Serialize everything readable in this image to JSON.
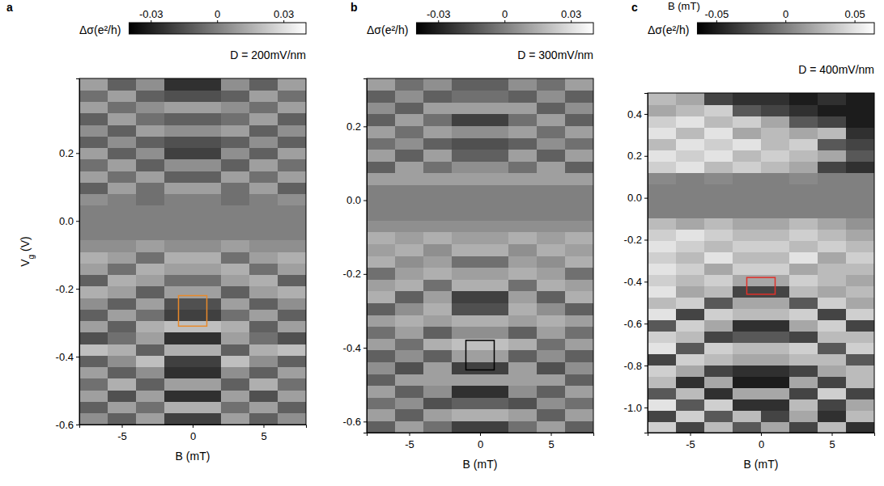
{
  "chart_data": [
    {
      "type": "heatmap",
      "panel": "a",
      "title": "D = 200mV/nm",
      "xlabel": "B (mT)",
      "ylabel": "Vg (V)",
      "xlim": [
        -8,
        8
      ],
      "ylim": [
        -0.6,
        0.42
      ],
      "xticks": [
        -5,
        0,
        5
      ],
      "yticks": [
        0.2,
        {
          "value": 0,
          "label": "0.0"
        },
        -0.2,
        -0.4,
        -0.6
      ],
      "x_edges": [
        -8,
        -6,
        -4,
        -2,
        0,
        2,
        4,
        6,
        8
      ],
      "y_edges": [
        -0.6,
        -0.566,
        -0.532,
        -0.498,
        -0.464,
        -0.43,
        -0.396,
        -0.362,
        -0.328,
        -0.294,
        -0.26,
        -0.226,
        -0.192,
        -0.158,
        -0.124,
        -0.09,
        -0.056,
        -0.022,
        0.012,
        0.046,
        0.08,
        0.114,
        0.148,
        0.182,
        0.216,
        0.25,
        0.284,
        0.318,
        0.352,
        0.386,
        0.42
      ],
      "z": [
        [
          0.005,
          -0.01,
          0.01,
          -0.02,
          -0.02,
          0.01,
          -0.01,
          0.005
        ],
        [
          -0.01,
          0.01,
          -0.005,
          0.015,
          0.015,
          -0.005,
          0.01,
          -0.01
        ],
        [
          0.01,
          -0.015,
          0.01,
          -0.025,
          -0.025,
          0.01,
          -0.015,
          0.01
        ],
        [
          -0.005,
          0.015,
          -0.01,
          0.01,
          0.01,
          -0.01,
          0.015,
          -0.005
        ],
        [
          0.01,
          -0.01,
          0.005,
          -0.025,
          -0.025,
          0.005,
          -0.01,
          0.01
        ],
        [
          -0.01,
          0.005,
          0.02,
          -0.02,
          -0.02,
          0.02,
          0.005,
          -0.01
        ],
        [
          0.02,
          0.015,
          -0.01,
          0.015,
          0.015,
          -0.01,
          0.015,
          0.02
        ],
        [
          -0.015,
          -0.005,
          0.01,
          -0.025,
          -0.025,
          0.01,
          -0.005,
          -0.015
        ],
        [
          0.01,
          -0.01,
          0.015,
          0.02,
          0.02,
          0.015,
          -0.01,
          0.01
        ],
        [
          -0.01,
          0.01,
          -0.005,
          -0.02,
          -0.02,
          -0.005,
          0.01,
          -0.01
        ],
        [
          0.005,
          -0.01,
          0.01,
          -0.015,
          -0.015,
          0.01,
          -0.01,
          0.005
        ],
        [
          0.015,
          0.01,
          -0.01,
          0.01,
          0.01,
          -0.01,
          0.01,
          0.015
        ],
        [
          -0.01,
          0.015,
          0.01,
          -0.005,
          -0.005,
          0.01,
          0.015,
          -0.01
        ],
        [
          0.01,
          -0.005,
          0.015,
          0.01,
          0.01,
          0.015,
          -0.005,
          0.01
        ],
        [
          0.015,
          0.01,
          -0.005,
          0.015,
          0.015,
          -0.005,
          0.01,
          0.015
        ],
        [
          0.005,
          0.005,
          0.01,
          0.005,
          0.005,
          0.01,
          0.005,
          0.005
        ],
        [
          0,
          0,
          0,
          0,
          0,
          0,
          0,
          0
        ],
        [
          0,
          0,
          0,
          0,
          0,
          0,
          0,
          0
        ],
        [
          0,
          0,
          0,
          0,
          0,
          0,
          0,
          0
        ],
        [
          0.005,
          0,
          -0.005,
          0,
          0,
          -0.005,
          0,
          0.005
        ],
        [
          -0.01,
          0.01,
          -0.005,
          0.01,
          0.01,
          -0.005,
          0.01,
          -0.01
        ],
        [
          0.01,
          -0.005,
          0.01,
          -0.01,
          -0.01,
          0.01,
          -0.005,
          0.01
        ],
        [
          -0.005,
          0.01,
          -0.01,
          0.005,
          0.005,
          -0.01,
          0.01,
          -0.005
        ],
        [
          0.01,
          -0.01,
          0.005,
          -0.02,
          -0.02,
          0.005,
          -0.01,
          0.01
        ],
        [
          -0.01,
          0.005,
          -0.01,
          -0.015,
          -0.015,
          -0.01,
          0.005,
          -0.01
        ],
        [
          0.005,
          -0.01,
          0.01,
          0.005,
          0.005,
          0.01,
          -0.01,
          0.005
        ],
        [
          -0.01,
          0.01,
          -0.005,
          -0.01,
          -0.01,
          -0.005,
          0.01,
          -0.01
        ],
        [
          0.01,
          -0.005,
          0.005,
          0.01,
          0.01,
          0.005,
          -0.005,
          0.01
        ],
        [
          -0.005,
          0.01,
          -0.01,
          -0.015,
          -0.015,
          -0.01,
          0.01,
          -0.005
        ],
        [
          0.01,
          -0.01,
          0.005,
          -0.025,
          -0.025,
          0.005,
          -0.01,
          0.01
        ]
      ],
      "colorbar": {
        "label": "Δσ(e²/h)",
        "range": [
          -0.04,
          0.04
        ],
        "ticks": [
          -0.03,
          0,
          0.03
        ]
      },
      "boxes": [
        {
          "x": [
            -1,
            1
          ],
          "y": [
            -0.31,
            -0.22
          ],
          "color": "#e8892a"
        }
      ]
    },
    {
      "type": "heatmap",
      "panel": "b",
      "title": "D = 300mV/nm",
      "xlabel": "B (mT)",
      "xlim": [
        -8,
        8
      ],
      "ylim": [
        -0.63,
        0.33
      ],
      "xticks": [
        -5,
        0,
        5
      ],
      "yticks": [
        0.2,
        {
          "value": 0,
          "label": "0.0"
        },
        -0.2,
        -0.4,
        -0.6
      ],
      "x_edges": [
        -8,
        -6,
        -4,
        -2,
        0,
        2,
        4,
        6,
        8
      ],
      "y_edges": [
        -0.63,
        -0.598,
        -0.566,
        -0.534,
        -0.502,
        -0.47,
        -0.438,
        -0.406,
        -0.374,
        -0.342,
        -0.31,
        -0.278,
        -0.246,
        -0.214,
        -0.182,
        -0.15,
        -0.118,
        -0.086,
        -0.054,
        -0.022,
        0.01,
        0.042,
        0.074,
        0.106,
        0.138,
        0.17,
        0.202,
        0.234,
        0.266,
        0.298,
        0.33
      ],
      "z": [
        [
          -0.01,
          0.01,
          -0.005,
          -0.02,
          -0.02,
          -0.005,
          0.01,
          -0.01
        ],
        [
          0.01,
          -0.01,
          0.01,
          0.015,
          0.015,
          0.01,
          -0.01,
          0.01
        ],
        [
          -0.005,
          0.005,
          -0.015,
          -0.01,
          -0.01,
          -0.015,
          0.005,
          -0.005
        ],
        [
          0.01,
          -0.01,
          0.005,
          -0.025,
          -0.025,
          0.005,
          -0.01,
          0.01
        ],
        [
          -0.01,
          0.01,
          0.01,
          0.01,
          0.01,
          0.01,
          0.01,
          -0.01
        ],
        [
          0.005,
          -0.015,
          0.01,
          -0.02,
          -0.02,
          0.01,
          -0.015,
          0.005
        ],
        [
          -0.01,
          0.005,
          -0.01,
          0.01,
          0.01,
          -0.01,
          0.005,
          -0.01
        ],
        [
          0.01,
          -0.005,
          0.015,
          0.02,
          0.02,
          0.015,
          -0.005,
          0.01
        ],
        [
          -0.005,
          0.01,
          -0.01,
          0.005,
          0.005,
          -0.01,
          0.01,
          -0.005
        ],
        [
          0.01,
          0.015,
          0.01,
          0.015,
          0.015,
          0.01,
          0.015,
          0.01
        ],
        [
          -0.01,
          0.005,
          0.015,
          -0.015,
          -0.015,
          0.015,
          0.005,
          -0.01
        ],
        [
          0.015,
          -0.01,
          0.01,
          -0.02,
          -0.02,
          0.01,
          -0.01,
          0.015
        ],
        [
          0.01,
          0.015,
          -0.005,
          0.015,
          0.015,
          -0.005,
          0.015,
          0.01
        ],
        [
          -0.005,
          0.01,
          0.015,
          0.01,
          0.01,
          0.015,
          0.01,
          -0.005
        ],
        [
          0.015,
          0.005,
          0.01,
          -0.005,
          -0.005,
          0.01,
          0.005,
          0.015
        ],
        [
          0.01,
          0.015,
          0.005,
          0.015,
          0.015,
          0.005,
          0.015,
          0.01
        ],
        [
          0.015,
          0.01,
          0.015,
          0.01,
          0.01,
          0.015,
          0.01,
          0.015
        ],
        [
          0.005,
          0.005,
          0.005,
          0.005,
          0.005,
          0.005,
          0.005,
          0.005
        ],
        [
          0,
          0,
          0,
          0,
          0,
          0,
          0,
          0
        ],
        [
          0,
          0,
          0,
          0,
          0,
          0,
          0,
          0
        ],
        [
          0,
          0,
          0,
          0,
          0,
          0,
          0,
          0
        ],
        [
          0.01,
          0.01,
          0.01,
          0.01,
          0.01,
          0.01,
          0.01,
          0.01
        ],
        [
          -0.01,
          0.01,
          -0.005,
          0.005,
          0.005,
          -0.005,
          0.01,
          -0.01
        ],
        [
          0.01,
          -0.01,
          0.01,
          -0.01,
          -0.01,
          0.01,
          -0.01,
          0.01
        ],
        [
          -0.005,
          0.005,
          -0.01,
          -0.015,
          -0.015,
          -0.01,
          0.005,
          -0.005
        ],
        [
          0.01,
          -0.005,
          0.01,
          0.005,
          0.005,
          0.01,
          -0.005,
          0.01
        ],
        [
          -0.01,
          0.01,
          -0.005,
          -0.02,
          -0.02,
          -0.005,
          0.01,
          -0.01
        ],
        [
          0.005,
          -0.01,
          0.01,
          0.01,
          0.01,
          0.01,
          -0.01,
          0.005
        ],
        [
          -0.01,
          0.005,
          -0.01,
          -0.005,
          -0.005,
          -0.01,
          0.005,
          -0.01
        ],
        [
          0.01,
          -0.005,
          0.005,
          -0.01,
          -0.01,
          0.005,
          -0.005,
          0.01
        ]
      ],
      "colorbar": {
        "label": "Δσ(e²/h)",
        "range": [
          -0.04,
          0.04
        ],
        "ticks": [
          -0.03,
          0,
          0.03
        ]
      },
      "boxes": [
        {
          "x": [
            -1,
            1
          ],
          "y": [
            -0.46,
            -0.38
          ],
          "color": "#000000"
        }
      ]
    },
    {
      "type": "heatmap",
      "panel": "c",
      "title": "D = 400mV/nm",
      "xlabel": "B (mT)",
      "annotation": "B (mT)",
      "xlim": [
        -8,
        8
      ],
      "ylim": [
        -1.12,
        0.5
      ],
      "xticks": [
        -5,
        0,
        5
      ],
      "yticks": [
        0.4,
        0.2,
        {
          "value": 0,
          "label": "0.0"
        },
        -0.2,
        -0.4,
        -0.6,
        -0.8,
        {
          "value": -1,
          "label": "-1.0"
        }
      ],
      "x_edges": [
        -8,
        -6,
        -4,
        -2,
        0,
        2,
        4,
        6,
        8
      ],
      "y_edges": [
        -1.12,
        -1.066,
        -1.012,
        -0.958,
        -0.904,
        -0.85,
        -0.796,
        -0.742,
        -0.688,
        -0.634,
        -0.58,
        -0.526,
        -0.472,
        -0.418,
        -0.364,
        -0.31,
        -0.256,
        -0.202,
        -0.148,
        -0.094,
        -0.04,
        0.014,
        0.068,
        0.122,
        0.176,
        0.23,
        0.284,
        0.338,
        0.392,
        0.446,
        0.5
      ],
      "z": [
        [
          0.04,
          -0.03,
          0.03,
          -0.02,
          0.02,
          -0.03,
          0.03,
          -0.04
        ],
        [
          -0.03,
          0.04,
          -0.02,
          0.03,
          -0.03,
          0.02,
          -0.04,
          0.03
        ],
        [
          0.05,
          -0.02,
          0.04,
          -0.04,
          -0.04,
          0.03,
          -0.03,
          0.02
        ],
        [
          -0.02,
          0.03,
          -0.04,
          0.02,
          0.02,
          -0.03,
          0.04,
          -0.03
        ],
        [
          0.03,
          -0.04,
          0.02,
          -0.05,
          -0.05,
          0.02,
          -0.03,
          0.03
        ],
        [
          0.04,
          0.02,
          -0.03,
          -0.04,
          -0.04,
          -0.03,
          0.02,
          0.03
        ],
        [
          -0.03,
          0.04,
          0.03,
          0.02,
          0.02,
          0.03,
          0.03,
          -0.02
        ],
        [
          0.05,
          -0.02,
          0.04,
          0.03,
          0.03,
          0.04,
          -0.02,
          0.04
        ],
        [
          0.04,
          0.03,
          -0.03,
          -0.02,
          -0.02,
          -0.03,
          0.03,
          0.03
        ],
        [
          -0.02,
          0.04,
          0.02,
          -0.04,
          -0.04,
          0.02,
          0.04,
          -0.03
        ],
        [
          0.05,
          -0.03,
          0.04,
          0.03,
          0.03,
          0.04,
          -0.03,
          0.04
        ],
        [
          0.03,
          0.04,
          -0.02,
          0.02,
          0.02,
          -0.02,
          0.04,
          0.02
        ],
        [
          0.05,
          0.02,
          0.03,
          -0.03,
          -0.03,
          0.03,
          0.02,
          0.03
        ],
        [
          0.04,
          0.03,
          0.04,
          0.02,
          0.02,
          0.04,
          0.03,
          0.02
        ],
        [
          0.05,
          0.04,
          0.02,
          0.04,
          0.04,
          0.02,
          0.03,
          0.03
        ],
        [
          0.04,
          0.03,
          0.05,
          0.03,
          0.03,
          0.05,
          0.02,
          0.04
        ],
        [
          0.05,
          0.04,
          0.03,
          0.04,
          0.04,
          0.03,
          0.04,
          0.03
        ],
        [
          0.04,
          0.05,
          0.04,
          0.03,
          0.03,
          0.04,
          0.03,
          0.02
        ],
        [
          0.03,
          0.02,
          0.03,
          0.02,
          0.02,
          0.03,
          0.02,
          0.01
        ],
        [
          0,
          0,
          0,
          0,
          0,
          0,
          0,
          0
        ],
        [
          0,
          0,
          0,
          0,
          0,
          0,
          0,
          0
        ],
        [
          0,
          0,
          0,
          0,
          0,
          0,
          0,
          0
        ],
        [
          0.005,
          0,
          0.005,
          0,
          0,
          0.005,
          0,
          0
        ],
        [
          0.04,
          0.05,
          0.03,
          0.04,
          0.03,
          0.02,
          -0.03,
          -0.04
        ],
        [
          0.05,
          0.04,
          0.05,
          0.03,
          0.04,
          0.03,
          0.02,
          -0.02
        ],
        [
          0.03,
          0.05,
          0.04,
          0.05,
          0.03,
          0.04,
          -0.02,
          -0.03
        ],
        [
          0.05,
          0.03,
          0.05,
          0.02,
          0.03,
          0.02,
          0.03,
          -0.04
        ],
        [
          0.04,
          0.05,
          0.03,
          0.04,
          0.02,
          -0.02,
          -0.03,
          -0.05
        ],
        [
          0.02,
          0.03,
          0.04,
          -0.02,
          -0.03,
          -0.04,
          -0.05,
          -0.05
        ],
        [
          0.03,
          0.02,
          -0.03,
          -0.04,
          -0.04,
          -0.05,
          -0.04,
          -0.05
        ]
      ],
      "colorbar": {
        "label": "Δσ(e²/h)",
        "range": [
          -0.064,
          0.064
        ],
        "ticks": [
          -0.05,
          0,
          0.05
        ]
      },
      "boxes": [
        {
          "x": [
            -1,
            1
          ],
          "y": [
            -0.46,
            -0.38
          ],
          "color": "#e0302a"
        }
      ]
    }
  ]
}
